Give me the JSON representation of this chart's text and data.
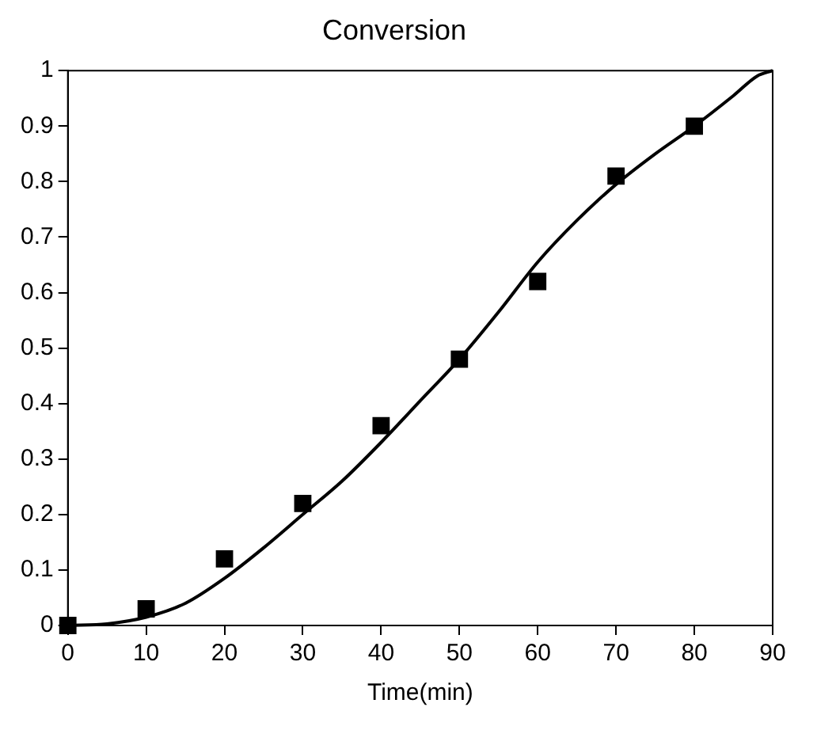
{
  "chart_data": {
    "type": "scatter",
    "title": "Conversion",
    "xlabel": "Time(min)",
    "xlim": [
      0,
      90
    ],
    "xticks": [
      0,
      10,
      20,
      30,
      40,
      50,
      60,
      70,
      80,
      90
    ],
    "ylim": [
      0,
      1
    ],
    "yticks": [
      0,
      0.1,
      0.2,
      0.3,
      0.4,
      0.5,
      0.6,
      0.7,
      0.8,
      0.9,
      1
    ],
    "grid": false,
    "legend": false,
    "series": [
      {
        "color": "#000000",
        "marker": "square",
        "x": [
          0,
          10,
          20,
          30,
          40,
          50,
          60,
          70,
          80
        ],
        "values": [
          0,
          0.03,
          0.12,
          0.22,
          0.36,
          0.48,
          0.62,
          0.81,
          0.9
        ]
      },
      {
        "type": "line",
        "color": "#000000",
        "marker": "none",
        "line_style": "solid",
        "x": [
          0,
          5,
          10,
          15,
          20,
          25,
          30,
          35,
          40,
          45,
          50,
          55,
          60,
          65,
          70,
          75,
          80,
          85,
          88,
          90
        ],
        "values": [
          0,
          0.003,
          0.015,
          0.04,
          0.085,
          0.14,
          0.2,
          0.26,
          0.33,
          0.405,
          0.48,
          0.565,
          0.655,
          0.73,
          0.795,
          0.85,
          0.9,
          0.955,
          0.99,
          1
        ]
      }
    ]
  }
}
